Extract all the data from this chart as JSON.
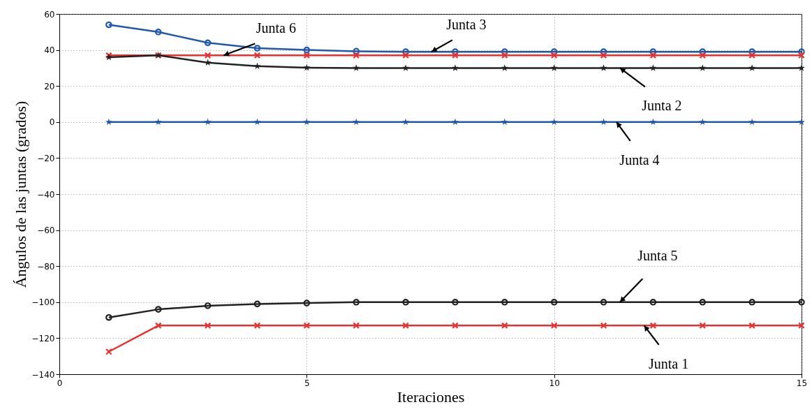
{
  "chart_data": {
    "type": "line",
    "xlabel": "Iteraciones",
    "ylabel": "Ángulos de las juntas (grados)",
    "x": [
      1,
      2,
      3,
      4,
      5,
      6,
      7,
      8,
      9,
      10,
      11,
      12,
      13,
      14,
      15
    ],
    "series": [
      {
        "color": "#2058b0",
        "marker": "circle",
        "values": [
          54,
          50,
          44,
          41,
          40,
          39.3,
          39,
          39,
          39,
          39,
          39,
          39,
          39,
          39,
          39
        ]
      },
      {
        "color": "#e8302f",
        "marker": "cross",
        "values": [
          37,
          37,
          37,
          37,
          37,
          37,
          37,
          37,
          37,
          37,
          37,
          37,
          37,
          37,
          37
        ]
      },
      {
        "color": "#222222",
        "marker": "star",
        "values": [
          36,
          37,
          33,
          31,
          30.2,
          30,
          30,
          30,
          30,
          30,
          30,
          30,
          30,
          30,
          30
        ]
      },
      {
        "color": "#2058b0",
        "marker": "star",
        "values": [
          0,
          0,
          0,
          0,
          0,
          0,
          0,
          0,
          0,
          0,
          0,
          0,
          0,
          0,
          0
        ]
      },
      {
        "color": "#222222",
        "marker": "circle",
        "values": [
          -108.5,
          -104,
          -102,
          -101,
          -100.5,
          -100,
          -100,
          -100,
          -100,
          -100,
          -100,
          -100,
          -100,
          -100,
          -100
        ]
      },
      {
        "color": "#e8302f",
        "marker": "cross",
        "values": [
          -127.5,
          -113,
          -113,
          -113,
          -113,
          -113,
          -113,
          -113,
          -113,
          -113,
          -113,
          -113,
          -113,
          -113,
          -113
        ]
      }
    ],
    "annotations": [
      {
        "text": "Junta 6",
        "x": 3.32,
        "y": 37
      },
      {
        "text": "Junta 3",
        "x": 7.52,
        "y": 39
      },
      {
        "text": "Junta 2",
        "x": 11.33,
        "y": 30
      },
      {
        "text": "Junta 4",
        "x": 11.26,
        "y": 0
      },
      {
        "text": "Junta 5",
        "x": 11.33,
        "y": -100
      },
      {
        "text": "Junta 1",
        "x": 11.82,
        "y": -113
      }
    ],
    "xlim": [
      0,
      15
    ],
    "xticks": [
      0,
      5,
      10,
      15
    ],
    "ylim": [
      -140,
      60
    ],
    "yticks": [
      -140,
      -120,
      -100,
      -80,
      -60,
      -40,
      -20,
      0,
      20,
      40,
      60
    ],
    "grid": true,
    "line_style": "solid"
  }
}
